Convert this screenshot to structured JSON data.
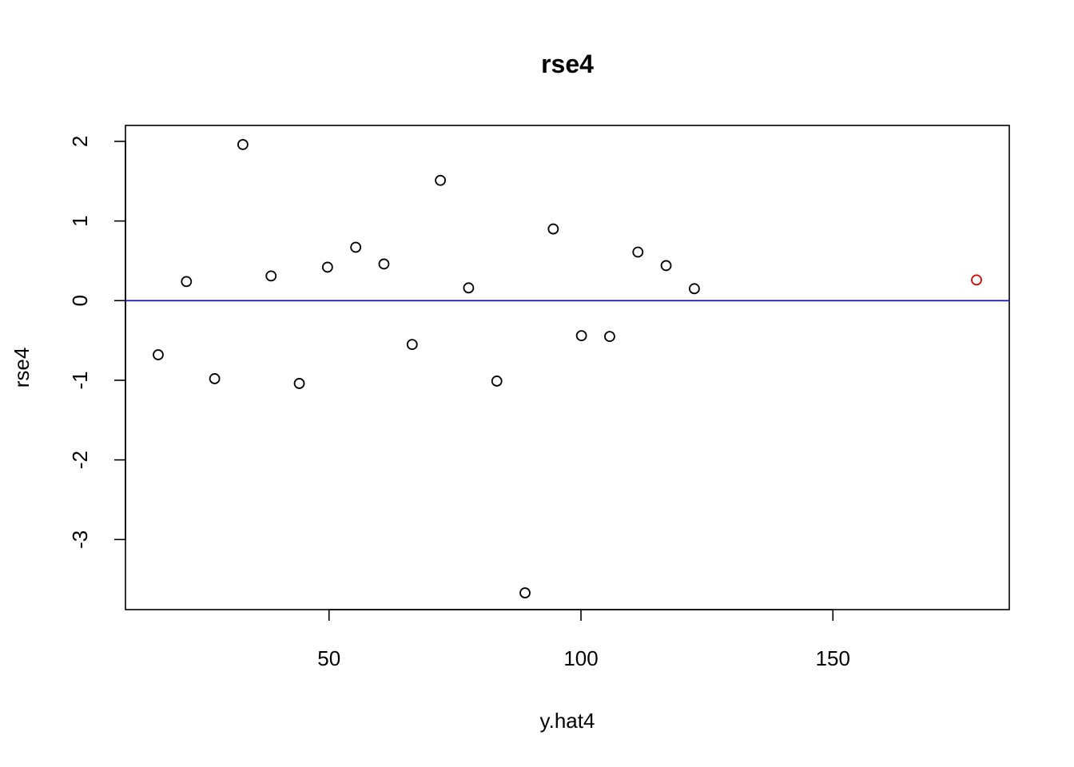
{
  "chart_data": {
    "type": "scatter",
    "title": "rse4",
    "xlabel": "y.hat4",
    "ylabel": "rse4",
    "xlim": [
      9.6,
      185
    ],
    "ylim": [
      -3.88,
      2.2
    ],
    "x_ticks": [
      50,
      100,
      150
    ],
    "x_tick_labels": [
      "50",
      "100",
      "150"
    ],
    "y_ticks": [
      -3,
      -2,
      -1,
      0,
      1,
      2
    ],
    "y_tick_labels": [
      "-3",
      "-2",
      "-1",
      "0",
      "1",
      "2"
    ],
    "reference_line": {
      "y": 0,
      "color": "#0000ff"
    },
    "grid": false,
    "points": [
      {
        "x": 16.1,
        "y": -0.68
      },
      {
        "x": 21.7,
        "y": 0.24
      },
      {
        "x": 27.3,
        "y": -0.98
      },
      {
        "x": 32.9,
        "y": 1.96
      },
      {
        "x": 38.5,
        "y": 0.31
      },
      {
        "x": 44.1,
        "y": -1.04
      },
      {
        "x": 49.7,
        "y": 0.42
      },
      {
        "x": 55.3,
        "y": 0.67
      },
      {
        "x": 60.9,
        "y": 0.46
      },
      {
        "x": 66.5,
        "y": -0.55
      },
      {
        "x": 72.1,
        "y": 1.51
      },
      {
        "x": 77.7,
        "y": 0.16
      },
      {
        "x": 83.3,
        "y": -1.01
      },
      {
        "x": 88.9,
        "y": -3.67
      },
      {
        "x": 94.5,
        "y": 0.9
      },
      {
        "x": 100.1,
        "y": -0.44
      },
      {
        "x": 105.7,
        "y": -0.45
      },
      {
        "x": 111.3,
        "y": 0.61
      },
      {
        "x": 116.9,
        "y": 0.44
      },
      {
        "x": 122.5,
        "y": 0.15
      },
      {
        "x": 178.5,
        "y": 0.26,
        "color": "#dd0000"
      }
    ],
    "point_color": "#000000",
    "box_color": "#000000"
  }
}
